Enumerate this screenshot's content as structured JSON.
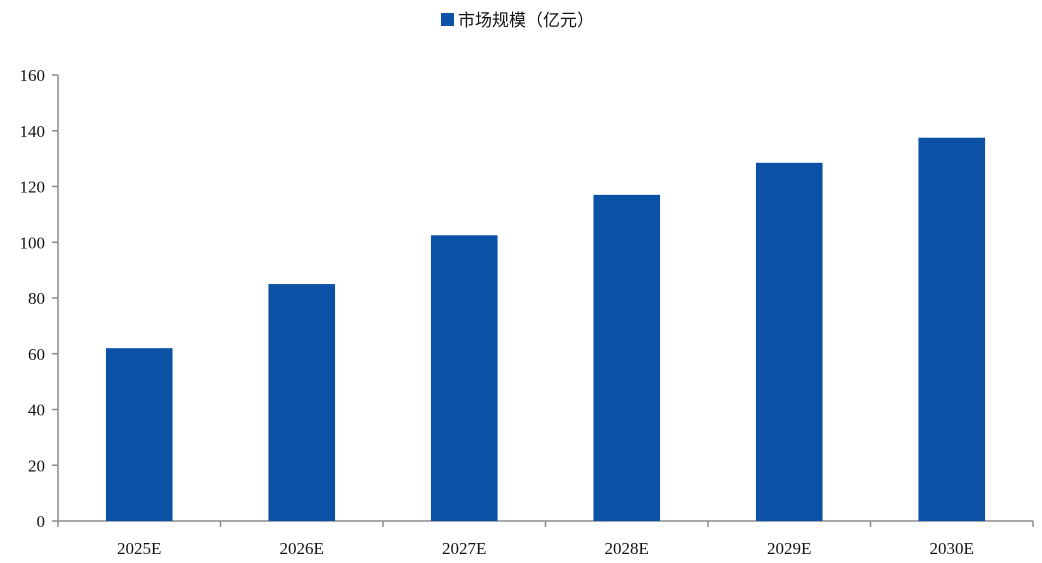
{
  "chart_data": {
    "type": "bar",
    "categories": [
      "2025E",
      "2026E",
      "2027E",
      "2028E",
      "2029E",
      "2030E"
    ],
    "series": [
      {
        "name": "市场规模（亿元）",
        "values": [
          62,
          85,
          102.5,
          117,
          128.5,
          137.5
        ]
      }
    ],
    "ylim": [
      0,
      160
    ],
    "yticks": [
      "0",
      "20",
      "40",
      "60",
      "80",
      "100",
      "120",
      "140",
      "160"
    ],
    "grid": false,
    "legend": "top-center",
    "colors": {
      "bar": "#0b52a7",
      "axis": "#8c8c8c",
      "text": "#111111"
    }
  }
}
